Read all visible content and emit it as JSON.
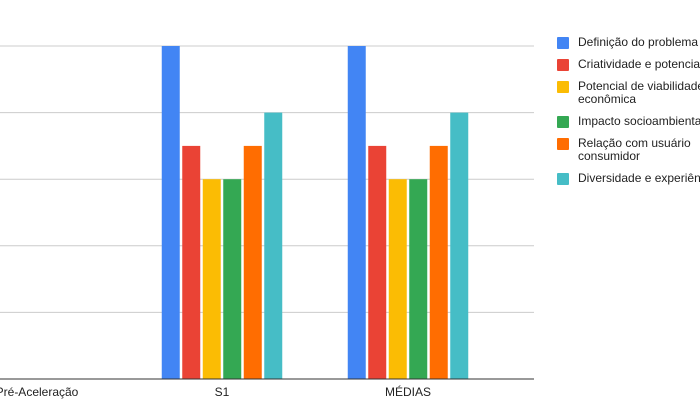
{
  "chart_data": {
    "type": "bar",
    "title": "",
    "xlabel": "",
    "ylabel": "",
    "ylim": [
      0,
      5
    ],
    "grid": true,
    "legend_position": "right",
    "categories": [
      "Pré-Aceleração",
      "S1",
      "MÉDIAS"
    ],
    "series": [
      {
        "name": "Definição do problema",
        "color": "#4285F4",
        "values": [
          0,
          5,
          5
        ]
      },
      {
        "name": "Criatividade e potencial",
        "color": "#EA4335",
        "values": [
          0,
          3.5,
          3.5
        ]
      },
      {
        "name": "Potencial de viabilidade econômica",
        "color": "#FBBC04",
        "values": [
          0,
          3,
          3
        ]
      },
      {
        "name": "Impacto socioambiental",
        "color": "#34A853",
        "values": [
          0,
          3,
          3
        ]
      },
      {
        "name": "Relação com usuário consumidor",
        "color": "#FF6D01",
        "values": [
          0,
          3.5,
          3.5
        ]
      },
      {
        "name": "Diversidade e experiência",
        "color": "#46BDC6",
        "values": [
          0,
          4,
          4
        ]
      }
    ]
  },
  "legend": {
    "items": [
      {
        "lines": [
          "Definição do problema"
        ],
        "color": "#4285F4"
      },
      {
        "lines": [
          "Criatividade e potencial"
        ],
        "color": "#EA4335"
      },
      {
        "lines": [
          "Potencial de viabilidade",
          "econômica"
        ],
        "color": "#FBBC04"
      },
      {
        "lines": [
          "Impacto socioambiental"
        ],
        "color": "#34A853"
      },
      {
        "lines": [
          "Relação com usuário",
          "consumidor"
        ],
        "color": "#FF6D01"
      },
      {
        "lines": [
          "Diversidade e experiência"
        ],
        "color": "#46BDC6"
      }
    ]
  }
}
